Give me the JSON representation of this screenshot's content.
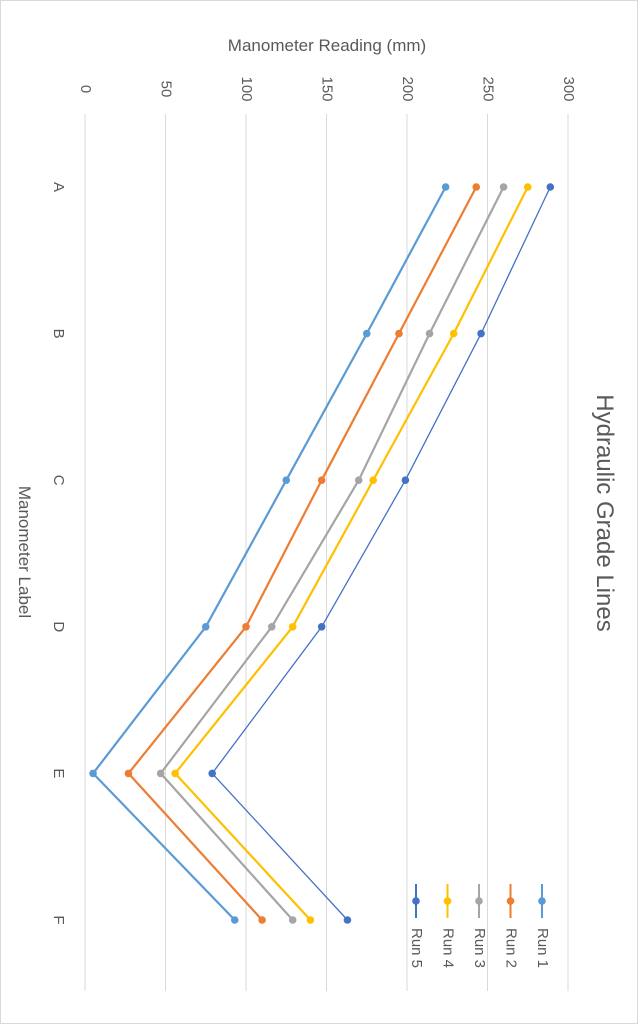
{
  "chart_data": {
    "type": "line",
    "orientation": "rotated-90-clockwise",
    "title": "Hydraulic Grade Lines",
    "xlabel": "Manometer Label",
    "ylabel": "Manometer Reading (mm)",
    "categories": [
      "A",
      "B",
      "C",
      "D",
      "E",
      "F"
    ],
    "ylim": [
      0,
      300
    ],
    "yticks": [
      0,
      50,
      100,
      150,
      200,
      250,
      300
    ],
    "grid": true,
    "legend_position": "bottom-right",
    "series": [
      {
        "name": "Run 1",
        "color": "#5b9bd5",
        "values": [
          224,
          175,
          125,
          75,
          5,
          93
        ]
      },
      {
        "name": "Run 2",
        "color": "#ed7d31",
        "values": [
          243,
          195,
          147,
          100,
          27,
          110
        ]
      },
      {
        "name": "Run 3",
        "color": "#a5a5a5",
        "values": [
          260,
          214,
          170,
          116,
          47,
          129
        ]
      },
      {
        "name": "Run 4",
        "color": "#ffc000",
        "values": [
          275,
          229,
          179,
          129,
          56,
          140
        ]
      },
      {
        "name": "Run 5",
        "color": "#4472c4",
        "values": [
          289,
          246,
          199,
          147,
          79,
          163
        ]
      }
    ]
  }
}
